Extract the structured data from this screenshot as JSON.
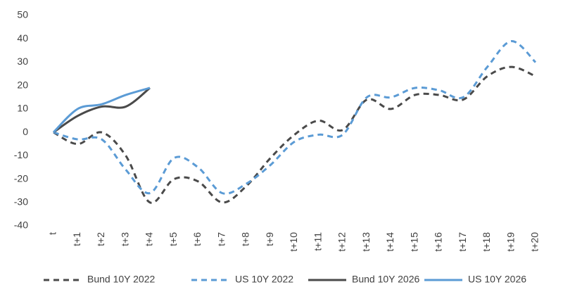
{
  "chart_data": {
    "type": "line",
    "categories": [
      "t",
      "t+1",
      "t+2",
      "t+3",
      "t+4",
      "t+5",
      "t+6",
      "t+7",
      "t+8",
      "t+9",
      "t+10",
      "t+11",
      "t+12",
      "t+13",
      "t+14",
      "t+15",
      "t+16",
      "t+17",
      "t+18",
      "t+19",
      "t+20"
    ],
    "series": [
      {
        "name": "Bund 10Y 2022",
        "color": "#4a4a4a",
        "dashed": true,
        "values": [
          0,
          -5,
          0,
          -10,
          -30,
          -20,
          -21,
          -30,
          -23,
          -11,
          -1,
          5,
          1,
          14,
          10,
          16,
          16,
          14,
          24,
          28,
          24
        ]
      },
      {
        "name": "US 10Y 2022",
        "color": "#5b9bd5",
        "dashed": true,
        "values": [
          0,
          -3,
          -3,
          -16,
          -26,
          -11,
          -15,
          -26,
          -22,
          -14,
          -4,
          -1,
          -1,
          15,
          15,
          19,
          18,
          15,
          28,
          39,
          30
        ]
      },
      {
        "name": "Bund 10Y 2026",
        "color": "#4a4a4a",
        "dashed": false,
        "values": [
          0,
          7,
          11,
          11,
          19,
          null,
          null,
          null,
          null,
          null,
          null,
          null,
          null,
          null,
          null,
          null,
          null,
          null,
          null,
          null,
          null
        ]
      },
      {
        "name": "US 10Y 2026",
        "color": "#5b9bd5",
        "dashed": false,
        "values": [
          0,
          10,
          12,
          16,
          19,
          null,
          null,
          null,
          null,
          null,
          null,
          null,
          null,
          null,
          null,
          null,
          null,
          null,
          null,
          null,
          null
        ]
      }
    ],
    "ylim": [
      -40,
      50
    ],
    "yticks": [
      -40,
      -30,
      -20,
      -10,
      0,
      10,
      20,
      30,
      40,
      50
    ],
    "grid": false,
    "legend": "bottom"
  }
}
